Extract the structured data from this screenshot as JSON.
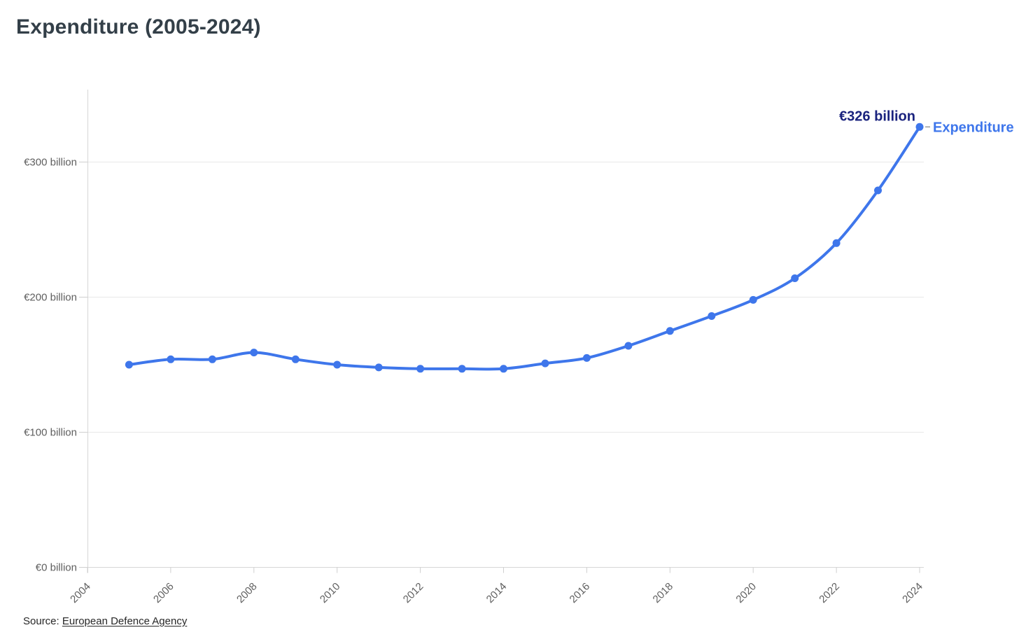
{
  "source": {
    "prefix": "Source: ",
    "link_text": "European Defence Agency"
  },
  "colors": {
    "line": "#3E76EB",
    "annotation": "#1a237e",
    "title": "#333F48",
    "axis_text": "#5f5f5f",
    "source_text": "#262626",
    "grid": "#e8e8e8",
    "axis_line": "#d6d6d6",
    "tick": "#cfcfcf",
    "legend_connector": "#999999"
  },
  "chart_data": {
    "type": "line",
    "title": "Expenditure (2005-2024)",
    "xlabel": "",
    "ylabel": "",
    "x": [
      2005,
      2006,
      2007,
      2008,
      2009,
      2010,
      2011,
      2012,
      2013,
      2014,
      2015,
      2016,
      2017,
      2018,
      2019,
      2020,
      2021,
      2022,
      2023,
      2024
    ],
    "series": [
      {
        "name": "Expenditure",
        "values": [
          150,
          154,
          154,
          159,
          154,
          150,
          148,
          147,
          147,
          147,
          151,
          155,
          164,
          175,
          186,
          198,
          214,
          240,
          279,
          326
        ]
      }
    ],
    "x_ticks": [
      2004,
      2006,
      2008,
      2010,
      2012,
      2014,
      2016,
      2018,
      2020,
      2022,
      2024
    ],
    "y_ticks": [
      {
        "value": 0,
        "label": "€0 billion"
      },
      {
        "value": 100,
        "label": "€100 billion"
      },
      {
        "value": 200,
        "label": "€200 billion"
      },
      {
        "value": 300,
        "label": "€300 billion"
      }
    ],
    "ylim": [
      0,
      353
    ],
    "xlim": [
      2004,
      2024.1
    ],
    "grid": "horizontal-only",
    "legend_position": "right-of-last-point",
    "annotation": "€326 billion",
    "units": "EUR billion"
  }
}
